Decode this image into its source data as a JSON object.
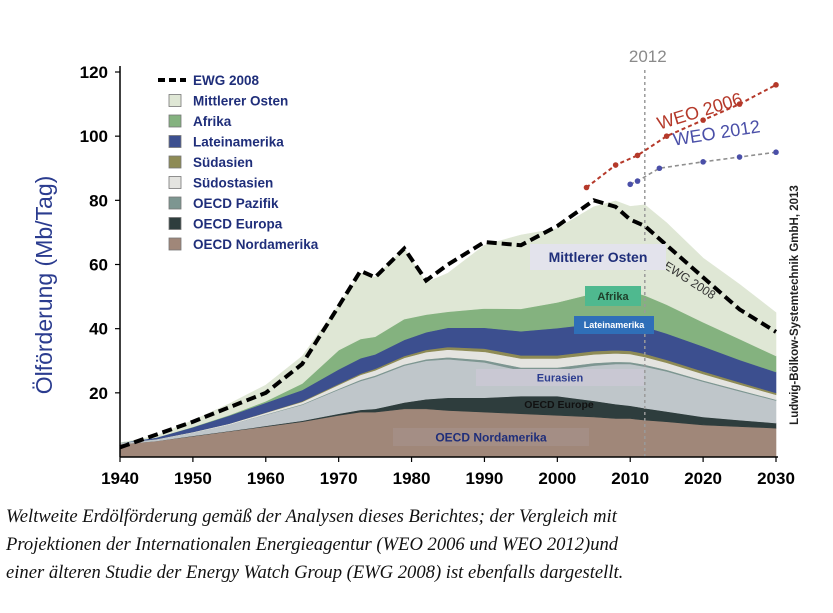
{
  "chart_data": {
    "type": "area",
    "ylabel": "Ölförderung (Mb/Tag)",
    "xlim": [
      1940,
      2030
    ],
    "ylim": [
      0,
      120
    ],
    "xticks": [
      1940,
      1950,
      1960,
      1970,
      1980,
      1990,
      2000,
      2010,
      2020,
      2030
    ],
    "yticks": [
      20,
      40,
      60,
      80,
      100,
      120
    ],
    "grid": false,
    "legend_position": "top-left",
    "x": [
      1940,
      1945,
      1950,
      1955,
      1960,
      1965,
      1970,
      1973,
      1975,
      1979,
      1982,
      1985,
      1990,
      1995,
      2000,
      2005,
      2008,
      2010,
      2012,
      2015,
      2020,
      2025,
      2030
    ],
    "series": [
      {
        "name": "OECD Nordamerika",
        "color": "#a08779",
        "values": [
          4,
          5,
          6.5,
          8,
          9.5,
          11,
          13,
          14,
          14,
          15,
          15,
          14.5,
          14,
          13.5,
          13,
          12.5,
          12,
          12,
          11.5,
          11,
          10,
          9.5,
          9
        ]
      },
      {
        "name": "OECD Europa",
        "color": "#2e3d3d",
        "values": [
          0,
          0,
          0.1,
          0.1,
          0.2,
          0.3,
          0.5,
          0.7,
          1,
          2,
          3,
          4,
          4.5,
          5.5,
          6,
          5,
          4.5,
          4,
          3.7,
          3.2,
          2.5,
          2,
          1.6
        ]
      },
      {
        "name": "Eurasien",
        "color": "#bfc6ca",
        "values": [
          0.3,
          0.5,
          1,
          2,
          3.5,
          5,
          7.5,
          9,
          10,
          11.5,
          12,
          12,
          11,
          8,
          8,
          11,
          12.5,
          13,
          13,
          12.5,
          11,
          9,
          7
        ]
      },
      {
        "name": "OECD Pazifik",
        "color": "#7d9691",
        "values": [
          0,
          0,
          0,
          0,
          0.1,
          0.2,
          0.3,
          0.4,
          0.4,
          0.4,
          0.5,
          0.6,
          0.7,
          0.9,
          0.9,
          0.8,
          0.7,
          0.6,
          0.6,
          0.5,
          0.4,
          0.4,
          0.3
        ]
      },
      {
        "name": "Südostasien",
        "color": "#e4e4e0",
        "values": [
          0.1,
          0.1,
          0.2,
          0.3,
          0.5,
          0.7,
          1.2,
          1.5,
          1.6,
          2,
          2.2,
          2.4,
          2.6,
          2.8,
          2.8,
          2.7,
          2.6,
          2.5,
          2.4,
          2.2,
          2,
          1.7,
          1.5
        ]
      },
      {
        "name": "Südasien",
        "color": "#8e8b55",
        "values": [
          0,
          0,
          0,
          0,
          0.1,
          0.2,
          0.3,
          0.4,
          0.5,
          0.6,
          0.7,
          0.8,
          1,
          1,
          1,
          1,
          1,
          1,
          1,
          0.9,
          0.8,
          0.7,
          0.6
        ]
      },
      {
        "name": "Lateinamerika",
        "color": "#3c4f8f",
        "values": [
          0,
          0.5,
          1.5,
          2.5,
          3,
          3.5,
          4.5,
          4.8,
          4.5,
          5,
          5.5,
          6,
          6.5,
          7.5,
          8.5,
          8.5,
          8.5,
          8.5,
          8.4,
          8.2,
          7.8,
          7,
          6.5
        ]
      },
      {
        "name": "Afrika",
        "color": "#84b27f",
        "values": [
          0,
          0,
          0.1,
          0.2,
          0.5,
          2,
          6,
          6,
          5.5,
          6.5,
          5.5,
          5,
          6,
          7,
          8,
          9.5,
          10,
          10,
          9.8,
          9,
          7.5,
          6.5,
          5
        ]
      },
      {
        "name": "Mittlerer Osten",
        "color": "#dfe7d5",
        "values": [
          0,
          0.5,
          2,
          3.5,
          5,
          8.5,
          14,
          20.5,
          18.5,
          22,
          10,
          12,
          19.7,
          23,
          23,
          27,
          28,
          26.5,
          28.2,
          25.5,
          20,
          17,
          13.5
        ]
      }
    ],
    "ewg2008": {
      "name": "EWG 2008",
      "x": [
        1940,
        1950,
        1960,
        1965,
        1970,
        1973,
        1975,
        1979,
        1982,
        1985,
        1990,
        1995,
        2000,
        2005,
        2008,
        2010,
        2012,
        2015,
        2020,
        2025,
        2030
      ],
      "values": [
        3,
        11,
        20,
        29,
        47,
        58,
        56,
        65,
        55,
        60,
        67,
        66,
        72,
        80,
        78,
        74,
        72,
        66,
        56,
        46,
        39
      ]
    },
    "weo2006": {
      "name": "WEO 2006",
      "x": [
        2004,
        2008,
        2011,
        2015,
        2020,
        2025,
        2030
      ],
      "values": [
        84,
        91,
        94,
        100,
        105,
        110,
        116
      ]
    },
    "weo2012": {
      "name": "WEO 2012",
      "x": [
        2010,
        2011,
        2014,
        2020,
        2025,
        2030
      ],
      "values": [
        85,
        86,
        90,
        92,
        93.5,
        95
      ]
    },
    "marker_2012": "2012",
    "labels": {
      "mittlerer_osten": "Mittlerer Osten",
      "afrika": "Afrika",
      "lateinamerika": "Lateinamerika",
      "eurasien": "Eurasien",
      "oecd_europe": "OECD Europe",
      "oecd_nordamerika": "OECD Nordamerika",
      "ewg2008": "EWG 2008",
      "weo2006": "WEO 2006",
      "weo2012": "WEO 2012"
    },
    "legend": [
      "EWG 2008",
      "Mittlerer Osten",
      "Afrika",
      "Lateinamerika",
      "Südasien",
      "Südostasien",
      "OECD Pazifik",
      "OECD Europa",
      "OECD Nordamerika"
    ],
    "source": "Ludwig-Bölkow-Systemtechnik GmbH, 2013",
    "colors": {
      "axis": "#000000",
      "ylabel": "#2b3c8f",
      "legend_text": "#1f2e7a",
      "weo2006": "#b5392a",
      "weo2012": "#4a4fa8",
      "guide": "#9a9a9a",
      "ewg": "#000000"
    }
  },
  "caption": {
    "line1": "Weltweite Erdölförderung gemäß der Analysen dieses Berichtes; der Vergleich mit",
    "line2": "Projektionen der Internationalen Energieagentur (WEO 2006 und WEO 2012)und",
    "line3": "einer älteren Studie der Energy Watch Group (EWG 2008) ist ebenfalls dargestellt."
  }
}
